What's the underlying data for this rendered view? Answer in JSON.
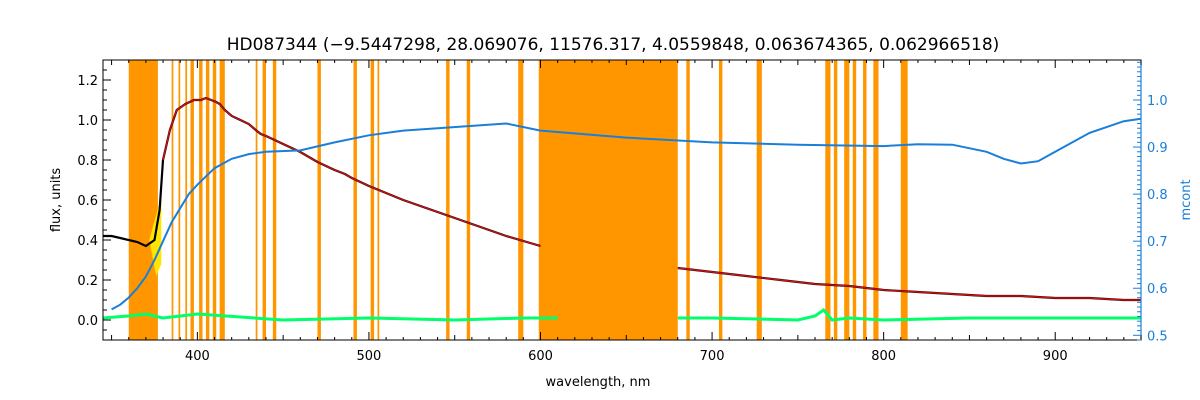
{
  "chart_data": {
    "type": "line",
    "title": "HD087344   (−9.5447298, 28.069076, 11576.317, 4.0559848, 0.063674365, 0.062966518)",
    "xlabel": "wavelength, nm",
    "ylabel": "flux, units",
    "ylabel_right": "mcont",
    "xlim": [
      345,
      950
    ],
    "ylim": [
      -0.1,
      1.3
    ],
    "ylim_right": [
      0.49,
      1.085
    ],
    "xticks": [
      400,
      500,
      600,
      700,
      800,
      900
    ],
    "yticks": [
      0.0,
      0.2,
      0.4,
      0.6,
      0.8,
      1.0,
      1.2
    ],
    "yticks_right": [
      0.5,
      0.6,
      0.7,
      0.8,
      0.9,
      1.0
    ],
    "grid": false,
    "colors": {
      "masked": "#ff9600",
      "observed": "#000000",
      "model": "#d01010",
      "residual": "#00ff6a",
      "continuum": "#1a7fd9",
      "shade": "#ffe600"
    },
    "masked_regions": [
      [
        360,
        377
      ],
      [
        385,
        386
      ],
      [
        389,
        390
      ],
      [
        393,
        394
      ],
      [
        396,
        398
      ],
      [
        401,
        403
      ],
      [
        405,
        407
      ],
      [
        409,
        411
      ],
      [
        413,
        416
      ],
      [
        434,
        435
      ],
      [
        438,
        440
      ],
      [
        444,
        446
      ],
      [
        470,
        472
      ],
      [
        491,
        493
      ],
      [
        501,
        503
      ],
      [
        505,
        506
      ],
      [
        545,
        547
      ],
      [
        557,
        559
      ],
      [
        587,
        590
      ],
      [
        599,
        680
      ],
      [
        685,
        687
      ],
      [
        704,
        706
      ],
      [
        726,
        729
      ],
      [
        766,
        769
      ],
      [
        771,
        773
      ],
      [
        777,
        780
      ],
      [
        782,
        784
      ],
      [
        788,
        790
      ],
      [
        794,
        797
      ],
      [
        810,
        814
      ]
    ],
    "series": [
      {
        "x": [
          345,
          350,
          355,
          360,
          365,
          370,
          375,
          378,
          380,
          384,
          388,
          393,
          398,
          402,
          405,
          408,
          411,
          413,
          416,
          420,
          425,
          430,
          434,
          437,
          440,
          445,
          450,
          460,
          470,
          480,
          486,
          490,
          495,
          500,
          520,
          540,
          560,
          580,
          600
        ],
        "y": [
          0.42,
          0.42,
          0.41,
          0.4,
          0.39,
          0.37,
          0.4,
          0.55,
          0.8,
          0.95,
          1.05,
          1.08,
          1.1,
          1.1,
          1.11,
          1.1,
          1.09,
          1.08,
          1.05,
          1.02,
          1.0,
          0.98,
          0.95,
          0.93,
          0.92,
          0.9,
          0.88,
          0.84,
          0.79,
          0.75,
          0.73,
          0.71,
          0.69,
          0.67,
          0.6,
          0.54,
          0.48,
          0.42,
          0.37
        ]
      },
      {
        "x": [
          680,
          700,
          720,
          740,
          760,
          780,
          800,
          820,
          840,
          860,
          880,
          900,
          920,
          940,
          950
        ],
        "y": [
          0.26,
          0.24,
          0.22,
          0.2,
          0.18,
          0.17,
          0.15,
          0.14,
          0.13,
          0.12,
          0.12,
          0.11,
          0.11,
          0.1,
          0.1
        ]
      },
      {
        "x": [
          380,
          384,
          388,
          393,
          398,
          402,
          405,
          408,
          411,
          413,
          416,
          420,
          425,
          430,
          434,
          437,
          440,
          445,
          450,
          460,
          470,
          480,
          486,
          490,
          495,
          500,
          520,
          540,
          560,
          580,
          600
        ],
        "y": [
          0.8,
          0.95,
          1.05,
          1.08,
          1.1,
          1.1,
          1.11,
          1.1,
          1.09,
          1.08,
          1.05,
          1.02,
          1.0,
          0.98,
          0.95,
          0.93,
          0.92,
          0.9,
          0.88,
          0.84,
          0.79,
          0.75,
          0.73,
          0.71,
          0.69,
          0.67,
          0.6,
          0.54,
          0.48,
          0.42,
          0.37
        ]
      },
      {
        "x": [
          680,
          700,
          720,
          740,
          760,
          780,
          800,
          820,
          840,
          860,
          880,
          900,
          920,
          940,
          950
        ],
        "y": [
          0.26,
          0.24,
          0.22,
          0.2,
          0.18,
          0.17,
          0.15,
          0.14,
          0.13,
          0.12,
          0.12,
          0.11,
          0.11,
          0.1,
          0.1
        ]
      },
      {
        "x": [
          345,
          360,
          370,
          380,
          400,
          450,
          500,
          550,
          590,
          600,
          610
        ],
        "y": [
          0.01,
          0.02,
          0.03,
          0.01,
          0.03,
          0.0,
          0.01,
          0.0,
          0.01,
          0.01,
          0.01
        ]
      },
      {
        "x": [
          680,
          700,
          750,
          760,
          765,
          770,
          780,
          800,
          850,
          900,
          950
        ],
        "y": [
          0.01,
          0.01,
          0.0,
          0.02,
          0.05,
          0.0,
          0.01,
          0.0,
          0.01,
          0.01,
          0.01
        ]
      },
      {
        "x": [
          350,
          355,
          360,
          365,
          370,
          375,
          380,
          385,
          390,
          395,
          400,
          410,
          420,
          430,
          440,
          460,
          480,
          500,
          520,
          540,
          560,
          580,
          600,
          650,
          700,
          750,
          800,
          820,
          840,
          860,
          870,
          880,
          890,
          900,
          920,
          940,
          950
        ],
        "y": [
          0.555,
          0.565,
          0.58,
          0.6,
          0.625,
          0.66,
          0.7,
          0.74,
          0.77,
          0.8,
          0.82,
          0.855,
          0.875,
          0.885,
          0.89,
          0.893,
          0.91,
          0.925,
          0.935,
          0.94,
          0.945,
          0.95,
          0.935,
          0.92,
          0.91,
          0.905,
          0.902,
          0.906,
          0.905,
          0.89,
          0.875,
          0.865,
          0.87,
          0.89,
          0.93,
          0.955,
          0.96
        ]
      }
    ]
  }
}
